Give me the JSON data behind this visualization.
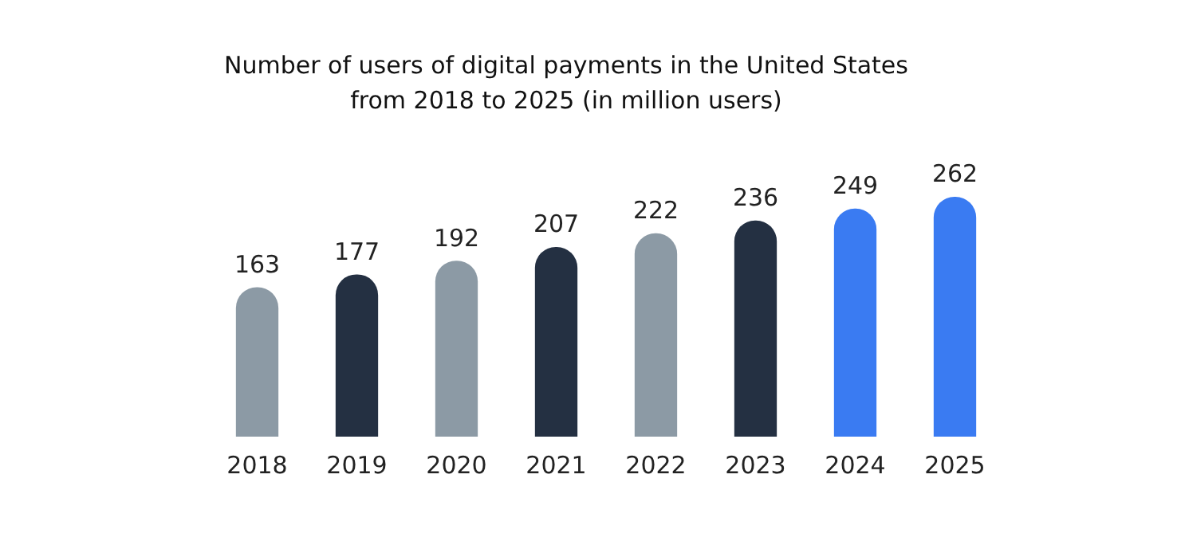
{
  "chart_data": {
    "type": "bar",
    "title": "Number of users of digital payments in the United States from 2018 to 2025 (in million users)",
    "categories": [
      "2018",
      "2019",
      "2020",
      "2021",
      "2022",
      "2023",
      "2024",
      "2025"
    ],
    "values": [
      163,
      177,
      192,
      207,
      222,
      236,
      249,
      262
    ],
    "colors": [
      "#8c9aa5",
      "#243042",
      "#8c9aa5",
      "#243042",
      "#8c9aa5",
      "#243042",
      "#3a7bf2",
      "#3a7bf2"
    ],
    "data_labels": true,
    "grid": false,
    "legend": false
  }
}
